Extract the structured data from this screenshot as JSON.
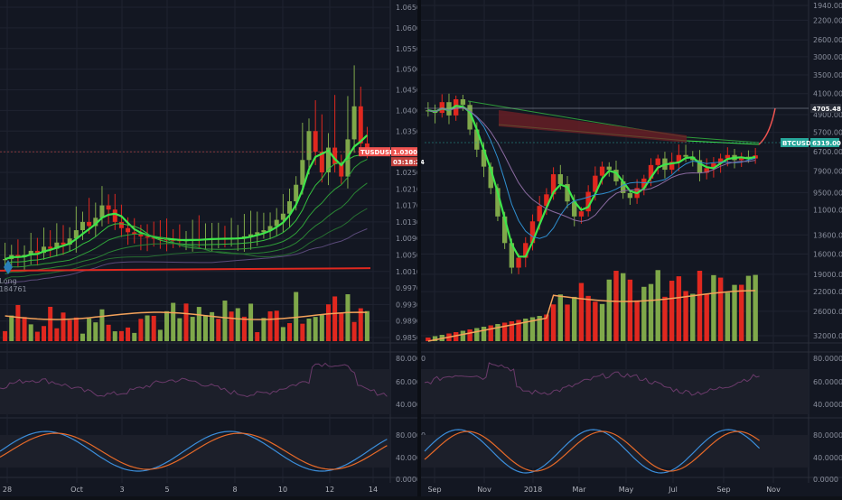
{
  "colors": {
    "bg": "#131722",
    "up": "#7fa84a",
    "down": "#e0281f",
    "ma_fast": "#3ee64a",
    "ma_slow": "#2e9a3a",
    "ema_orange": "#f4a25a",
    "stoch_blue": "#3b8edb",
    "stoch_orange": "#e86a28",
    "rsi": "#6a3a6a",
    "support": "#e0281f",
    "price_badge_left": "#ef5350",
    "price_badge_right": "#26a69a"
  },
  "left_chart": {
    "symbol_badge": "TUSDUSDT",
    "price_badge": "1.0300",
    "countdown_badge": "03:18:24",
    "long_marker": {
      "label": "Long",
      "value": "+184761"
    },
    "y_ticks": [
      "1.0650",
      "1.0600",
      "1.0550",
      "1.0500",
      "1.0450",
      "1.0400",
      "1.0350",
      "1.0300",
      "1.0250",
      "1.0210",
      "1.0170",
      "1.0130",
      "1.0090",
      "1.0050",
      "1.0010",
      "0.9970",
      "0.9930",
      "0.9890",
      "0.9850"
    ],
    "x_ticks": [
      "28",
      "Oct",
      "3",
      "5",
      "8",
      "10",
      "12",
      "14"
    ],
    "rsi_ticks": [
      "80.0000",
      "60.0000",
      "40.0000"
    ],
    "stoch_ticks": [
      "80.0000",
      "40.0000",
      "0.0000"
    ]
  },
  "right_chart": {
    "symbol_badge": "BTCUSDT",
    "price_badge": "6319.00",
    "level_badge": "4705.48",
    "y_ticks": [
      "1940.00",
      "2200.00",
      "2600.00",
      "3000.00",
      "3500.00",
      "4100.00",
      "4900.00",
      "5700.00",
      "6700.00",
      "7900.00",
      "9500.00",
      "11000.00",
      "13600.00",
      "16000.00",
      "19000.00",
      "22000.00",
      "26000.00",
      "32000.00"
    ],
    "x_ticks": [
      "Sep",
      "Nov",
      "2018",
      "Mar",
      "May",
      "Jul",
      "Sep",
      "Nov"
    ],
    "rsi_ticks": [
      "80.0000",
      "60.0000",
      "40.0000"
    ],
    "stoch_ticks": [
      "80.0000",
      "40.0000",
      "0.0000"
    ]
  },
  "chart_data": [
    {
      "type": "candlestick",
      "title": "TUSDUSDT",
      "x": [
        "28",
        "Oct",
        "3",
        "5",
        "8",
        "10",
        "12",
        "14"
      ],
      "ylim": [
        0.985,
        1.065
      ],
      "close_series": [
        1.004,
        1.005,
        1.0045,
        1.005,
        1.006,
        1.0055,
        1.007,
        1.0065,
        1.008,
        1.0075,
        1.009,
        1.011,
        1.013,
        1.012,
        1.014,
        1.017,
        1.016,
        1.013,
        1.0115,
        1.0105,
        1.01,
        1.0095,
        1.0092,
        1.009,
        1.0088,
        1.0087,
        1.0086,
        1.0085,
        1.0086,
        1.0088,
        1.0087,
        1.0089,
        1.009,
        1.009,
        1.0088,
        1.009,
        1.0092,
        1.0095,
        1.01,
        1.0105,
        1.011,
        1.012,
        1.0135,
        1.015,
        1.018,
        1.022,
        1.028,
        1.035,
        1.03,
        1.025,
        1.031,
        1.027,
        1.024,
        1.033,
        1.041,
        1.032,
        1.03
      ],
      "current_price": 1.03
    },
    {
      "type": "candlestick",
      "title": "BTCUSDT",
      "scale": "log",
      "x": [
        "Sep",
        "Nov",
        "2018",
        "Mar",
        "May",
        "Jul",
        "Sep",
        "Nov"
      ],
      "ylim": [
        1940,
        32000
      ],
      "close_series": [
        4200,
        4300,
        3900,
        4400,
        3800,
        4000,
        5000,
        6000,
        7000,
        8500,
        11000,
        14000,
        17500,
        16000,
        14000,
        11500,
        10000,
        9000,
        7500,
        8200,
        9600,
        11000,
        10500,
        8800,
        7600,
        7000,
        7200,
        8000,
        8900,
        9300,
        8500,
        7800,
        6900,
        6500,
        7200,
        6700,
        6300,
        6400,
        6600,
        7400,
        7100,
        6800,
        6500,
        6300,
        6600,
        6400,
        6500,
        6320
      ],
      "current_price": 6319.0,
      "resistance": 4705.48
    }
  ]
}
